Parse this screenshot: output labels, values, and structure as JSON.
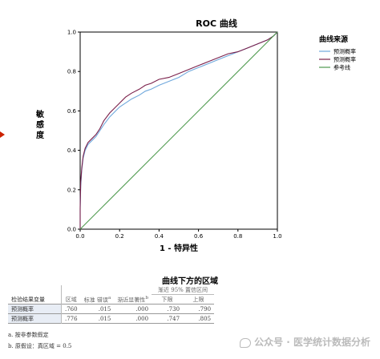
{
  "chart_data": {
    "type": "line",
    "title": "ROC 曲线",
    "xlabel": "1 - 特异性",
    "ylabel": "敏感度",
    "xlim": [
      0,
      1
    ],
    "ylim": [
      0,
      1
    ],
    "xticks": [
      "0.0",
      "0.2",
      "0.4",
      "0.6",
      "0.8",
      "1.0"
    ],
    "yticks": [
      "0.0",
      "0.2",
      "0.4",
      "0.6",
      "0.8",
      "1.0"
    ],
    "grid": false,
    "legend_title": "曲线来源",
    "legend_position": "right",
    "series": [
      {
        "name": "预测概率",
        "color": "#6fa8dc",
        "x": [
          0,
          0.0,
          0.003,
          0.008,
          0.015,
          0.025,
          0.04,
          0.06,
          0.08,
          0.1,
          0.12,
          0.15,
          0.18,
          0.2,
          0.23,
          0.26,
          0.3,
          0.33,
          0.36,
          0.4,
          0.45,
          0.5,
          0.55,
          0.6,
          0.65,
          0.7,
          0.75,
          0.8,
          0.85,
          0.9,
          0.95,
          0.98,
          1.0
        ],
        "y": [
          0,
          0.1,
          0.22,
          0.3,
          0.36,
          0.4,
          0.43,
          0.45,
          0.47,
          0.5,
          0.53,
          0.57,
          0.6,
          0.62,
          0.64,
          0.66,
          0.68,
          0.7,
          0.71,
          0.73,
          0.75,
          0.77,
          0.8,
          0.82,
          0.84,
          0.86,
          0.88,
          0.9,
          0.92,
          0.94,
          0.96,
          0.98,
          1.0
        ]
      },
      {
        "name": "预测概率",
        "color": "#7a1f4a",
        "x": [
          0,
          0.0,
          0.003,
          0.008,
          0.015,
          0.025,
          0.04,
          0.06,
          0.08,
          0.1,
          0.12,
          0.15,
          0.18,
          0.2,
          0.23,
          0.26,
          0.3,
          0.33,
          0.36,
          0.4,
          0.45,
          0.5,
          0.55,
          0.6,
          0.65,
          0.7,
          0.75,
          0.8,
          0.85,
          0.9,
          0.95,
          0.98,
          1.0
        ],
        "y": [
          0,
          0.11,
          0.24,
          0.31,
          0.37,
          0.41,
          0.44,
          0.46,
          0.48,
          0.51,
          0.55,
          0.59,
          0.62,
          0.64,
          0.67,
          0.69,
          0.71,
          0.73,
          0.74,
          0.76,
          0.77,
          0.79,
          0.81,
          0.83,
          0.85,
          0.87,
          0.89,
          0.9,
          0.92,
          0.94,
          0.96,
          0.98,
          1.0
        ]
      },
      {
        "name": "参考线",
        "color": "#4e9a4e",
        "x": [
          0,
          1
        ],
        "y": [
          0,
          1
        ]
      }
    ]
  },
  "table": {
    "title": "曲线下方的区域",
    "header_row1": [
      "检验结果变量",
      "区域",
      "标准 错误",
      "渐近显著性",
      "渐近 95% 置信区间"
    ],
    "superscripts": {
      "std_error": "a",
      "significance": "b"
    },
    "header_row2": [
      "下限",
      "上限"
    ],
    "rows": [
      {
        "label": "预测概率",
        "area": ".760",
        "se": ".015",
        "sig": ".000",
        "lower": ".730",
        "upper": ".790"
      },
      {
        "label": "预测概率",
        "area": ".776",
        "se": ".015",
        "sig": ".000",
        "lower": ".747",
        "upper": ".805"
      }
    ]
  },
  "footnotes": [
    "a. 按非参数假定",
    "b. 原假设：真区域 = 0.5"
  ],
  "watermark": "公众号 · 医学统计数据分析"
}
